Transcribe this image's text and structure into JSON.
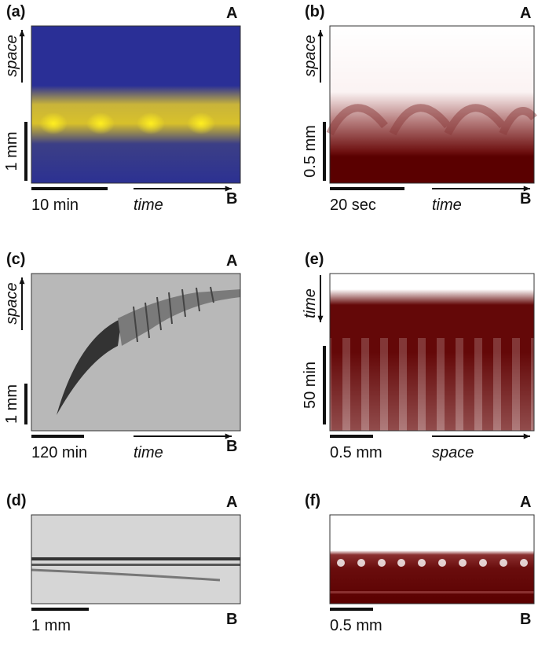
{
  "panels": [
    {
      "label": "(a)",
      "top_letter": "A",
      "bottom_letter": "B",
      "vertical_axis": "space",
      "vertical_scale": "1 mm",
      "horizontal_scale": "10 min",
      "horizontal_axis": "time"
    },
    {
      "label": "(b)",
      "top_letter": "A",
      "bottom_letter": "B",
      "vertical_axis": "space",
      "vertical_scale": "0.5 mm",
      "horizontal_scale": "20 sec",
      "horizontal_axis": "time"
    },
    {
      "label": "(c)",
      "top_letter": "A",
      "bottom_letter": "B",
      "vertical_axis": "space",
      "vertical_scale": "1 mm",
      "horizontal_scale": "120 min",
      "horizontal_axis": "time"
    },
    {
      "label": "(e)",
      "vertical_axis": "time",
      "vertical_scale": "50 min",
      "horizontal_scale": "0.5 mm",
      "horizontal_axis": "space"
    },
    {
      "label": "(d)",
      "top_letter": "A",
      "bottom_letter": "B",
      "horizontal_scale": "1 mm"
    },
    {
      "label": "(f)",
      "top_letter": "A",
      "bottom_letter": "B",
      "horizontal_scale": "0.5 mm"
    }
  ]
}
